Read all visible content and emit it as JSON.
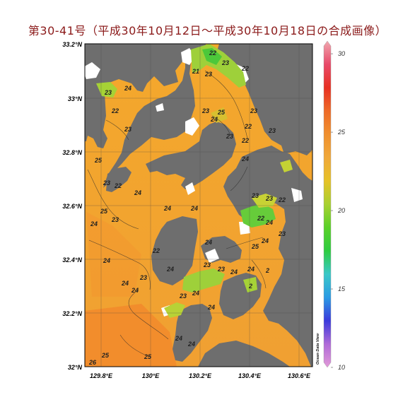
{
  "title": "第30-41号（平成30年10月12日～平成30年10月18日の合成画像）",
  "map": {
    "lat_labels": [
      "33.2°N",
      "33°N",
      "32.8°N",
      "32.6°N",
      "32.4°N",
      "32.2°N",
      "32°N"
    ],
    "lon_labels": [
      "129.8°E",
      "130°E",
      "130.2°E",
      "130.4°E",
      "130.6°E"
    ],
    "credit": "Ocean Data View",
    "land_color": "#6e6e6e",
    "contour_labels": [
      "22",
      "23",
      "21",
      "23",
      "22",
      "24",
      "23",
      "22",
      "23",
      "25",
      "24",
      "23",
      "23",
      "22",
      "23",
      "22",
      "23",
      "25",
      "24",
      "23",
      "22",
      "24",
      "25",
      "23",
      "24",
      "24",
      "24",
      "23",
      "23",
      "22",
      "22",
      "24",
      "23",
      "25",
      "24",
      "24",
      "24",
      "22",
      "24",
      "23",
      "23",
      "24",
      "24",
      "23",
      "24",
      "24",
      "2",
      "2",
      "24",
      "23",
      "24",
      "24",
      "24",
      "25",
      "26",
      "25"
    ]
  },
  "colorbar": {
    "tick_labels": [
      "30",
      "25",
      "20",
      "15",
      "10"
    ],
    "ticks": [
      30,
      25,
      20,
      15,
      10
    ],
    "range": [
      10,
      30.5
    ],
    "stops": [
      "#e29ad8",
      "#b06ad8",
      "#3a3adc",
      "#2a9ae4",
      "#3ac8c8",
      "#2ecc40",
      "#5ad028",
      "#a8d030",
      "#e6c226",
      "#f0a83a",
      "#f0902e",
      "#ee6a28",
      "#e83022",
      "#e84a6a",
      "#f0a8b0"
    ]
  }
}
